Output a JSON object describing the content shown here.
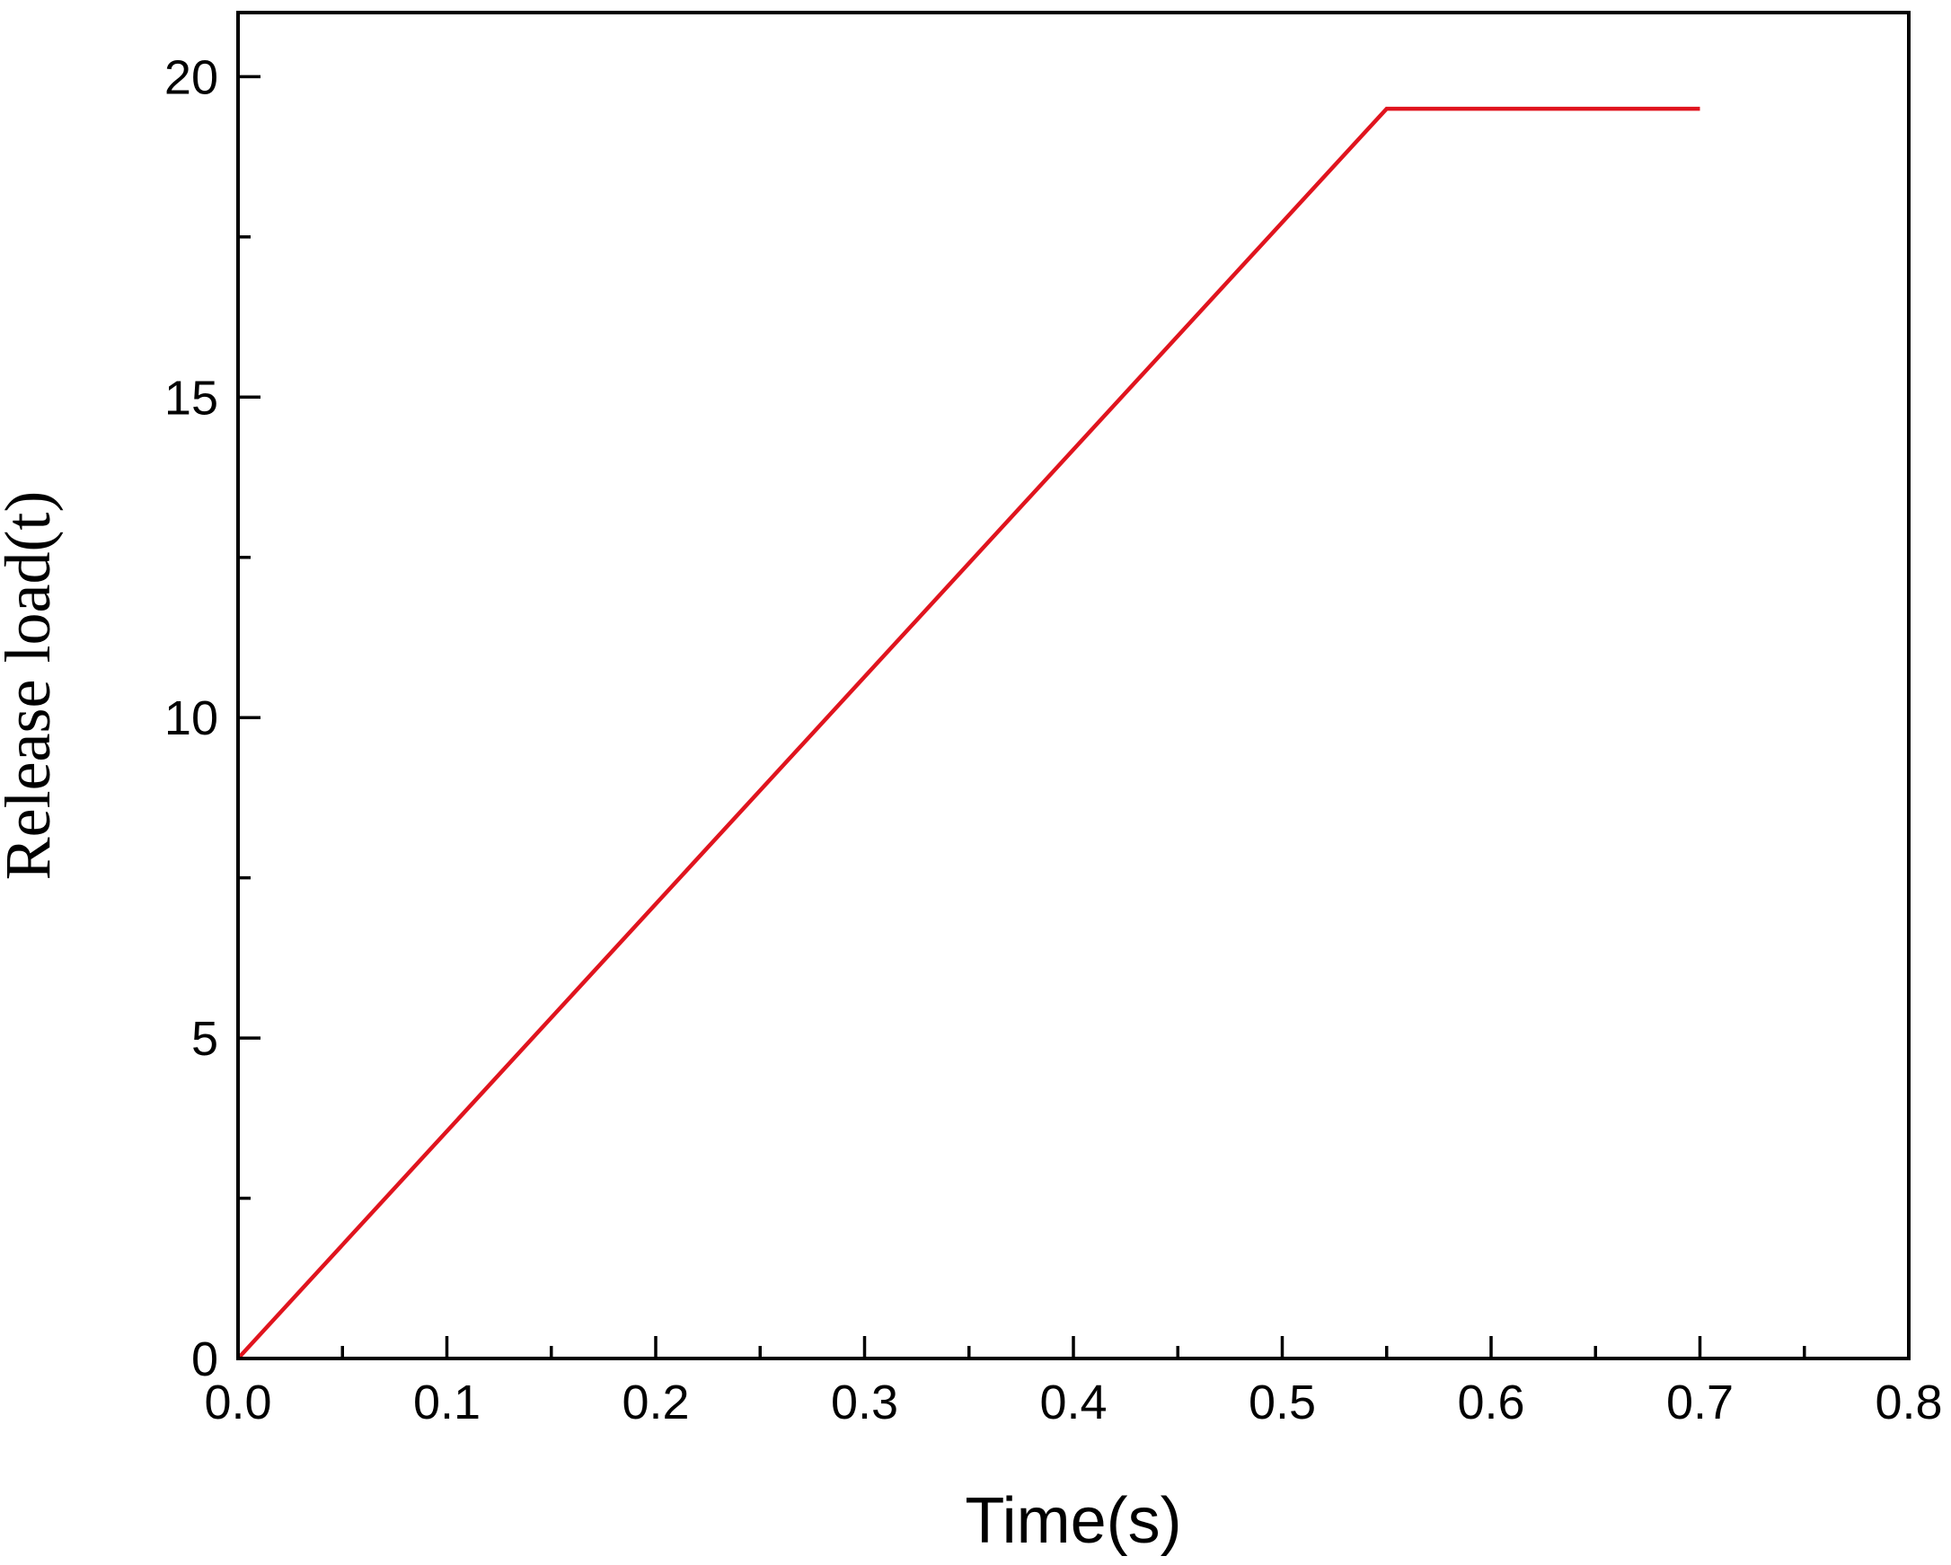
{
  "chart_data": {
    "type": "line",
    "title": "",
    "xlabel": "Time(s)",
    "ylabel": "Release load(t)",
    "xlim": [
      0.0,
      0.8
    ],
    "ylim": [
      0,
      21
    ],
    "x_ticks": [
      0.0,
      0.1,
      0.2,
      0.3,
      0.4,
      0.5,
      0.6,
      0.7,
      0.8
    ],
    "x_tick_labels": [
      "0.0",
      "0.1",
      "0.2",
      "0.3",
      "0.4",
      "0.5",
      "0.6",
      "0.7",
      "0.8"
    ],
    "x_minor_ticks": [
      0.05,
      0.15,
      0.25,
      0.35,
      0.45,
      0.55,
      0.65,
      0.75
    ],
    "y_ticks": [
      0,
      5,
      10,
      15,
      20
    ],
    "y_tick_labels": [
      "0",
      "5",
      "10",
      "15",
      "20"
    ],
    "y_minor_ticks": [
      2.5,
      7.5,
      12.5,
      17.5
    ],
    "grid": false,
    "series": [
      {
        "color": "#e0141e",
        "points": [
          {
            "x": 0.0,
            "y": 0.0
          },
          {
            "x": 0.55,
            "y": 19.5
          },
          {
            "x": 0.7,
            "y": 19.5
          }
        ]
      }
    ]
  }
}
